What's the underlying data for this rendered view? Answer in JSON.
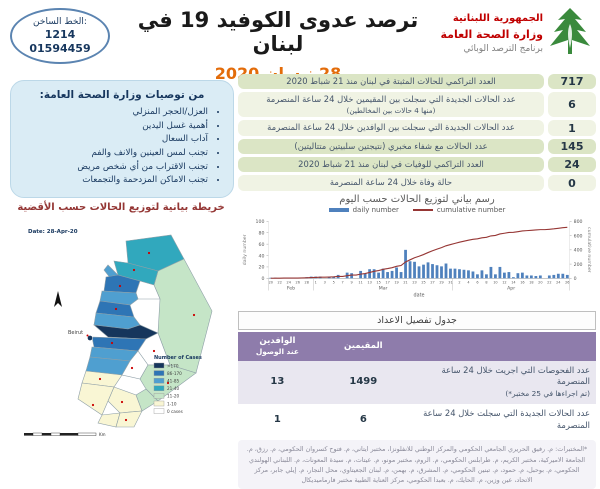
{
  "header": {
    "ministry": {
      "line1": "الجمهورية اللبنانية",
      "line2": "وزارة الصحة العامة",
      "line3": "برنامج الترصد الوبائي"
    },
    "title": "ترصد عدوى الكوفيد 19 في لبنان",
    "date": "28 نيسان 2020",
    "hotline": {
      "label": "الخط الساخن:",
      "number1": "1214",
      "number2": "01594459"
    }
  },
  "recommendations": {
    "title": "من توصيات وزارة الصحة العامة:",
    "items": [
      "العزل/الحجر المنزلي",
      "أهمية غسل اليدين",
      "آداب السعال",
      "تجنب لمس العينين والانف والفم",
      "تجنب الاقتراب من أي شخص مريض",
      "تجنب الاماكن المزدحمة والتجمعات"
    ]
  },
  "stats": [
    {
      "value": "717",
      "label": "العدد التراكمي للحالات المثبتة في لبنان منذ 21 شباط 2020",
      "sublabel": ""
    },
    {
      "value": "6",
      "label": "عدد الحالات الجديدة التي سجلت بين المقيمين خلال 24 ساعة المنصرمة",
      "sublabel": "(منها 4 حالات بين المخالطين)"
    },
    {
      "value": "1",
      "label": "عدد الحالات الجديدة التي سجلت بين الوافدين خلال 24 ساعة المنصرمة",
      "sublabel": ""
    },
    {
      "value": "145",
      "label": "عدد الحالات مع شفاء مخبري (نتيجتين سلبيتين متتاليتين)",
      "sublabel": ""
    },
    {
      "value": "24",
      "label": "العدد التراكمي للوفيات في لبنان منذ 21 شباط 2020",
      "sublabel": ""
    },
    {
      "value": "0",
      "label": "حالة وفاة خلال 24 ساعة المنصرمة",
      "sublabel": ""
    }
  ],
  "map": {
    "title": "خريطة بيانية لتوزيع الحالات حسب الأقضية",
    "date_label": "Date: 28-Apr-20",
    "beirut_label": "Beirut",
    "scale_label": "Km",
    "legend": {
      "title": "Number of Cases",
      "entries": [
        {
          "color": "#16365c",
          "label": ">170"
        },
        {
          "color": "#2e75b5",
          "label": "86-170"
        },
        {
          "color": "#4f9fd0",
          "label": "41-85"
        },
        {
          "color": "#31a8bd",
          "label": "21-40"
        },
        {
          "color": "#c5e5c7",
          "label": "11-20"
        },
        {
          "color": "#f9f6d4",
          "label": "1-10"
        },
        {
          "color": "#ffffff",
          "label": "0 cases"
        }
      ]
    }
  },
  "chart_data": {
    "type": "bar",
    "title": "رسم بياني لتوزيع الحالات حسب اليوم",
    "xlabel": "date",
    "ylabel_left": "daily number",
    "ylabel_right": "cumulative number",
    "ylim_left": [
      0,
      100
    ],
    "ylim_right": [
      0,
      800
    ],
    "legend": [
      "daily number",
      "cumulative number"
    ],
    "legend_position": "top",
    "grid": false,
    "colors": {
      "bar": "#4f81bd",
      "line": "#963634"
    },
    "months": [
      {
        "label": "Feb",
        "start": 0,
        "end": 9
      },
      {
        "label": "Mar",
        "start": 10,
        "end": 40
      },
      {
        "label": "Apr",
        "start": 41,
        "end": 66
      }
    ],
    "categories": [
      "Feb 20",
      "Feb 21",
      "Feb 22",
      "Feb 23",
      "Feb 24",
      "Feb 25",
      "Feb 26",
      "Feb 27",
      "Feb 28",
      "Feb 29",
      "Mar 1",
      "Mar 2",
      "Mar 3",
      "Mar 4",
      "Mar 5",
      "Mar 6",
      "Mar 7",
      "Mar 8",
      "Mar 9",
      "Mar 10",
      "Mar 11",
      "Mar 12",
      "Mar 13",
      "Mar 14",
      "Mar 15",
      "Mar 16",
      "Mar 17",
      "Mar 18",
      "Mar 19",
      "Mar 20",
      "Mar 21",
      "Mar 22",
      "Mar 23",
      "Mar 24",
      "Mar 25",
      "Mar 26",
      "Mar 27",
      "Mar 28",
      "Mar 29",
      "Mar 30",
      "Mar 31",
      "Apr 1",
      "Apr 2",
      "Apr 3",
      "Apr 4",
      "Apr 5",
      "Apr 6",
      "Apr 7",
      "Apr 8",
      "Apr 9",
      "Apr 10",
      "Apr 11",
      "Apr 12",
      "Apr 13",
      "Apr 14",
      "Apr 15",
      "Apr 16",
      "Apr 17",
      "Apr 18",
      "Apr 19",
      "Apr 20",
      "Apr 21",
      "Apr 22",
      "Apr 23",
      "Apr 24",
      "Apr 25",
      "Apr 26"
    ],
    "series": [
      {
        "name": "daily number",
        "type": "bar",
        "axis": "left",
        "values": [
          1,
          1,
          0,
          1,
          0,
          0,
          1,
          1,
          2,
          3,
          3,
          3,
          0,
          2,
          3,
          6,
          0,
          10,
          9,
          0,
          13,
          8,
          16,
          16,
          10,
          17,
          11,
          13,
          19,
          11,
          50,
          30,
          29,
          21,
          24,
          28,
          25,
          23,
          21,
          26,
          17,
          17,
          16,
          15,
          14,
          12,
          7,
          14,
          7,
          20,
          7,
          20,
          10,
          11,
          2,
          9,
          10,
          5,
          5,
          4,
          5,
          0,
          5,
          6,
          8,
          8,
          6
        ]
      },
      {
        "name": "cumulative number",
        "type": "line",
        "axis": "right",
        "derived": "running total of daily number",
        "final_value": 717
      }
    ]
  },
  "table": {
    "title": "جدول تفصيل الاعداد",
    "residents_header": "المقيمين",
    "arrivals_header": {
      "line1": "الوافدين",
      "line2": "عند الوصول"
    },
    "rows": [
      {
        "label": "عدد الفحوصات التي اجريت خلال 24 ساعة المنصرمة",
        "sublabel": "(تم اجراءها في 25 مختبر*)",
        "resident": "1499",
        "arrival": "13"
      },
      {
        "label": "عدد الحالات الجديدة التي سجلت خلال 24 ساعة المنصرمة",
        "sublabel": "",
        "resident": "6",
        "arrival": "1"
      }
    ]
  },
  "footnote": "*المختبرات: م. رفيق الحريري الجامعي الحكومي والمركز الوطني للانفلونزا، مختبر ايتاني، م. فتوح كسروان الحكومي، م. رزق، م. الجامعة الاميركية، مختبر الكريم، م. طرابلس الحكومي، م. الروم، مختبر مونو، م. عيتات، م. سيدة المعونات، م. اللبناني الهولندي الحكومي، م. بوحبل، م. حمود، م. تبنين الحكومي، م. المشرق، م. بهمن، م. لبنان الجعيتاوي، محل النجار، م. إيلي جابر، مركز الاتحاد، عين وزين، م. الحايك، م. بعبدا الحكومي، مركز العناية الطبية مختبر فارماميديكال"
}
